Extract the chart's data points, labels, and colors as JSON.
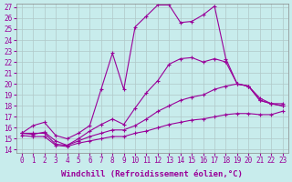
{
  "xlabel": "Windchill (Refroidissement éolien,°C)",
  "bg_color": "#c8ecec",
  "line_color": "#990099",
  "grid_color": "#b0c8c8",
  "xlim": [
    0,
    23
  ],
  "ylim": [
    14,
    27
  ],
  "xticks": [
    0,
    1,
    2,
    3,
    4,
    5,
    6,
    7,
    8,
    9,
    10,
    11,
    12,
    13,
    14,
    15,
    16,
    17,
    18,
    19,
    20,
    21,
    22,
    23
  ],
  "yticks": [
    14,
    15,
    16,
    17,
    18,
    19,
    20,
    21,
    22,
    23,
    24,
    25,
    26,
    27
  ],
  "lines": [
    {
      "x": [
        0,
        1,
        2,
        3,
        4,
        5,
        6,
        7,
        8,
        9,
        10,
        11,
        12,
        13,
        14,
        15,
        16,
        17,
        18,
        19,
        20,
        21,
        22,
        23
      ],
      "y": [
        15.5,
        16.2,
        16.5,
        15.3,
        15.0,
        15.5,
        16.2,
        19.5,
        22.8,
        19.5,
        25.2,
        26.2,
        27.2,
        27.2,
        25.6,
        25.7,
        26.3,
        27.1,
        22.3,
        20.0,
        19.8,
        18.7,
        18.2,
        18.2
      ]
    },
    {
      "x": [
        0,
        1,
        2,
        3,
        4,
        5,
        6,
        7,
        8,
        9,
        10,
        11,
        12,
        13,
        14,
        15,
        16,
        17,
        18,
        19,
        20,
        21,
        22,
        23
      ],
      "y": [
        15.5,
        15.4,
        15.6,
        14.8,
        14.4,
        15.0,
        15.7,
        16.3,
        16.8,
        16.3,
        17.8,
        19.2,
        20.3,
        21.8,
        22.3,
        22.4,
        22.0,
        22.3,
        22.0,
        20.0,
        19.8,
        18.5,
        18.2,
        18.0
      ]
    },
    {
      "x": [
        0,
        1,
        2,
        3,
        4,
        5,
        6,
        7,
        8,
        9,
        10,
        11,
        12,
        13,
        14,
        15,
        16,
        17,
        18,
        19,
        20,
        21,
        22,
        23
      ],
      "y": [
        15.5,
        15.5,
        15.5,
        14.5,
        14.4,
        14.8,
        15.2,
        15.5,
        15.8,
        15.8,
        16.2,
        16.8,
        17.5,
        18.0,
        18.5,
        18.8,
        19.0,
        19.5,
        19.8,
        20.0,
        19.8,
        18.5,
        18.2,
        18.0
      ]
    },
    {
      "x": [
        0,
        1,
        2,
        3,
        4,
        5,
        6,
        7,
        8,
        9,
        10,
        11,
        12,
        13,
        14,
        15,
        16,
        17,
        18,
        19,
        20,
        21,
        22,
        23
      ],
      "y": [
        15.3,
        15.2,
        15.2,
        14.4,
        14.3,
        14.6,
        14.8,
        15.0,
        15.2,
        15.2,
        15.5,
        15.7,
        16.0,
        16.3,
        16.5,
        16.7,
        16.8,
        17.0,
        17.2,
        17.3,
        17.3,
        17.2,
        17.2,
        17.5
      ]
    }
  ],
  "tick_fontsize": 5.5,
  "label_fontsize": 6.5
}
